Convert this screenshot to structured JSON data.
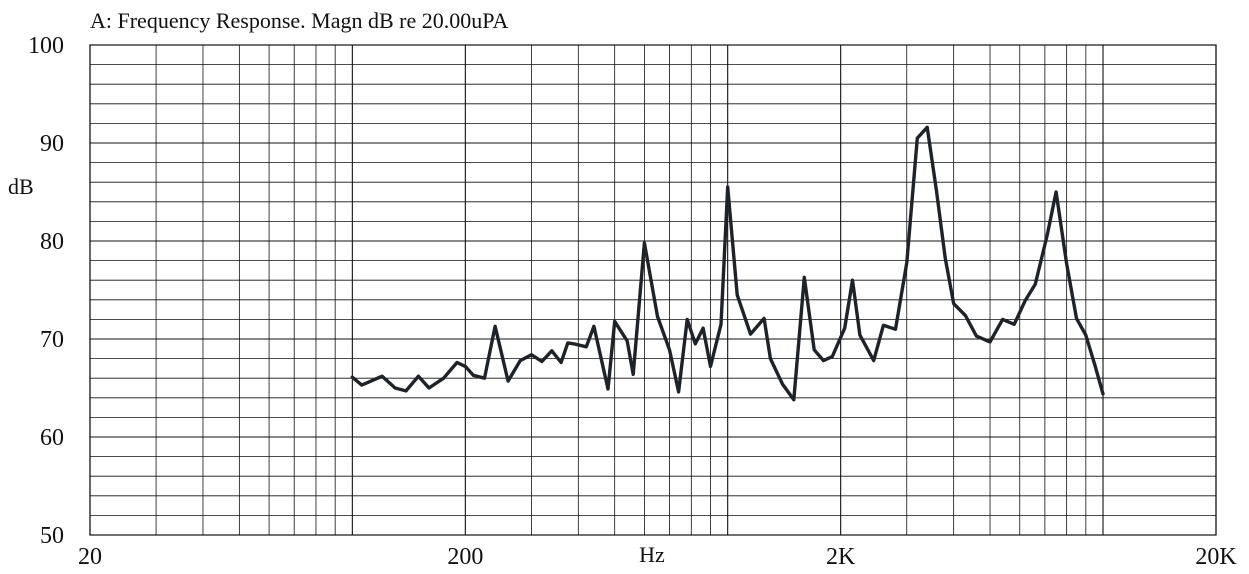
{
  "chart_data": {
    "type": "line",
    "title": "A: Frequency Response. Magn dB re 20.00uPA",
    "xlabel": "Hz",
    "ylabel": "dB",
    "x_scale": "log",
    "xlim": [
      20,
      20000
    ],
    "ylim": [
      50,
      100
    ],
    "x_ticks": [
      20,
      200,
      2000,
      20000
    ],
    "x_tick_labels": [
      "20",
      "200",
      "2K",
      "20K"
    ],
    "y_ticks": [
      50,
      60,
      70,
      80,
      90,
      100
    ],
    "y_tick_labels": [
      "50",
      "60",
      "70",
      "80",
      "90",
      "100"
    ],
    "grid": true,
    "minor_y_step": 2,
    "series": [
      {
        "color": "#1f2327",
        "x": [
          100,
          106,
          120,
          130,
          139,
          150,
          160,
          175,
          190,
          200,
          210,
          225,
          240,
          260,
          280,
          300,
          320,
          340,
          360,
          375,
          390,
          420,
          440,
          480,
          500,
          540,
          560,
          600,
          650,
          700,
          740,
          780,
          820,
          860,
          900,
          960,
          1000,
          1060,
          1150,
          1250,
          1300,
          1400,
          1500,
          1600,
          1700,
          1800,
          1900,
          2050,
          2150,
          2250,
          2450,
          2600,
          2800,
          3000,
          3200,
          3400,
          3600,
          3800,
          4000,
          4300,
          4600,
          5000,
          5400,
          5800,
          6200,
          6600,
          7100,
          7500,
          8000,
          8500,
          9000,
          9500,
          10000
        ],
        "y": [
          66.1,
          65.3,
          66.2,
          65.0,
          64.7,
          66.2,
          65.0,
          66.0,
          67.6,
          67.2,
          66.3,
          66.0,
          71.3,
          65.7,
          67.8,
          68.4,
          67.7,
          68.8,
          67.6,
          69.6,
          69.5,
          69.2,
          71.3,
          64.9,
          71.8,
          69.8,
          66.4,
          79.8,
          72.3,
          68.9,
          64.6,
          72.0,
          69.5,
          71.1,
          67.2,
          71.5,
          85.5,
          74.5,
          70.5,
          72.1,
          68.0,
          65.4,
          63.8,
          76.3,
          68.9,
          67.8,
          68.2,
          71.1,
          76.0,
          70.4,
          67.8,
          71.4,
          71.0,
          77.8,
          90.5,
          91.6,
          85.1,
          78.2,
          73.6,
          72.4,
          70.3,
          69.7,
          72.0,
          71.5,
          73.9,
          75.6,
          80.6,
          85.0,
          77.7,
          72.1,
          70.4,
          67.4,
          64.4
        ]
      }
    ]
  }
}
